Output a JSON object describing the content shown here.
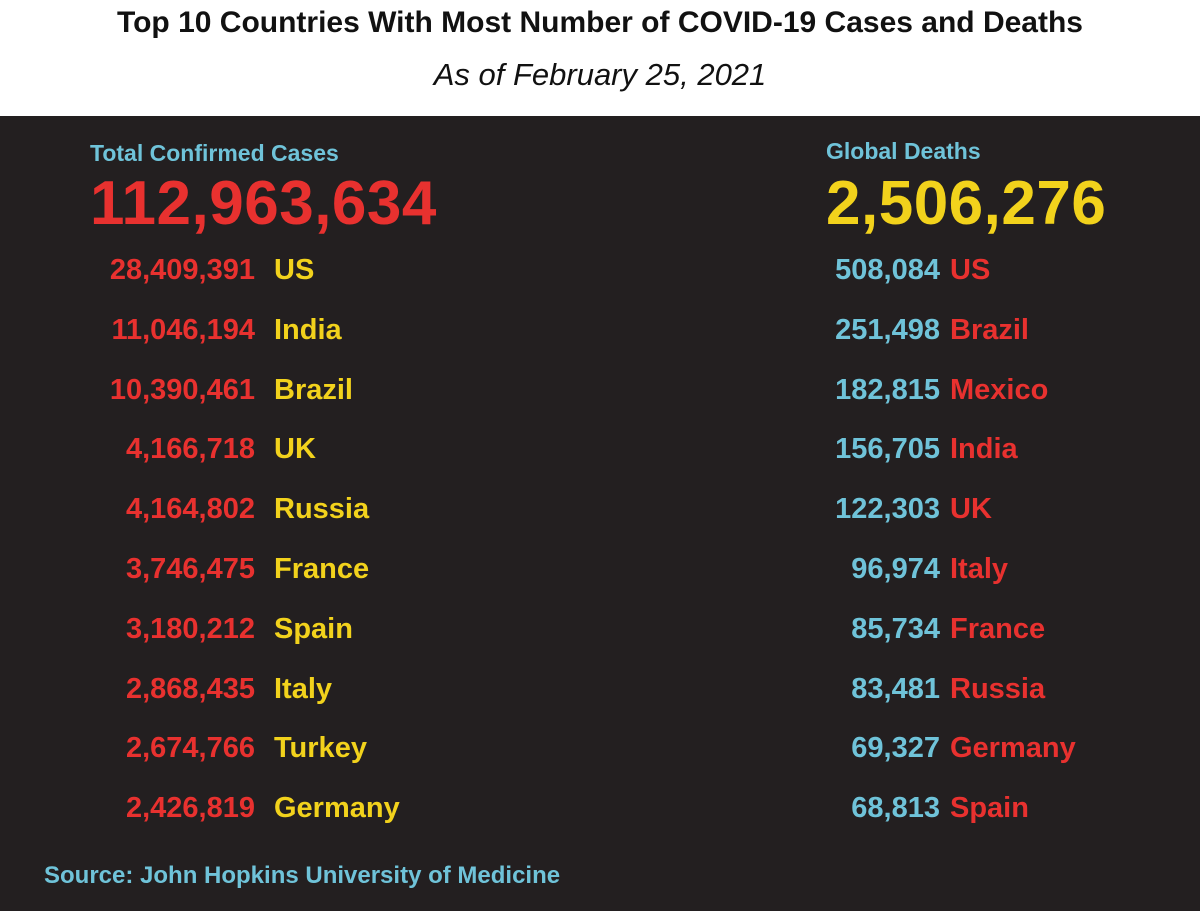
{
  "title": "Top 10 Countries With Most Number of COVID-19 Cases and Deaths",
  "subtitle": "As of February 25, 2021",
  "cases": {
    "label": "Total Confirmed Cases",
    "total": "112,963,634",
    "rows": [
      {
        "value": "28,409,391",
        "country": "US"
      },
      {
        "value": "11,046,194",
        "country": "India"
      },
      {
        "value": "10,390,461",
        "country": "Brazil"
      },
      {
        "value": "4,166,718",
        "country": "UK"
      },
      {
        "value": "4,164,802",
        "country": "Russia"
      },
      {
        "value": "3,746,475",
        "country": "France"
      },
      {
        "value": "3,180,212",
        "country": "Spain"
      },
      {
        "value": "2,868,435",
        "country": "Italy"
      },
      {
        "value": "2,674,766",
        "country": "Turkey"
      },
      {
        "value": "2,426,819",
        "country": "Germany"
      }
    ]
  },
  "deaths": {
    "label": "Global Deaths",
    "total": "2,506,276",
    "rows": [
      {
        "value": "508,084",
        "country": "US"
      },
      {
        "value": "251,498",
        "country": "Brazil"
      },
      {
        "value": "182,815",
        "country": "Mexico"
      },
      {
        "value": "156,705",
        "country": "India"
      },
      {
        "value": "122,303",
        "country": "UK"
      },
      {
        "value": "96,974",
        "country": "Italy"
      },
      {
        "value": "85,734",
        "country": "France"
      },
      {
        "value": "83,481",
        "country": "Russia"
      },
      {
        "value": "69,327",
        "country": "Germany"
      },
      {
        "value": "68,813",
        "country": "Spain"
      }
    ]
  },
  "source": "Source: John Hopkins University of Medicine",
  "colors": {
    "background": "#231f20",
    "label_blue": "#6fc3d9",
    "number_red": "#e8312f",
    "number_yellow": "#f2d21c"
  }
}
